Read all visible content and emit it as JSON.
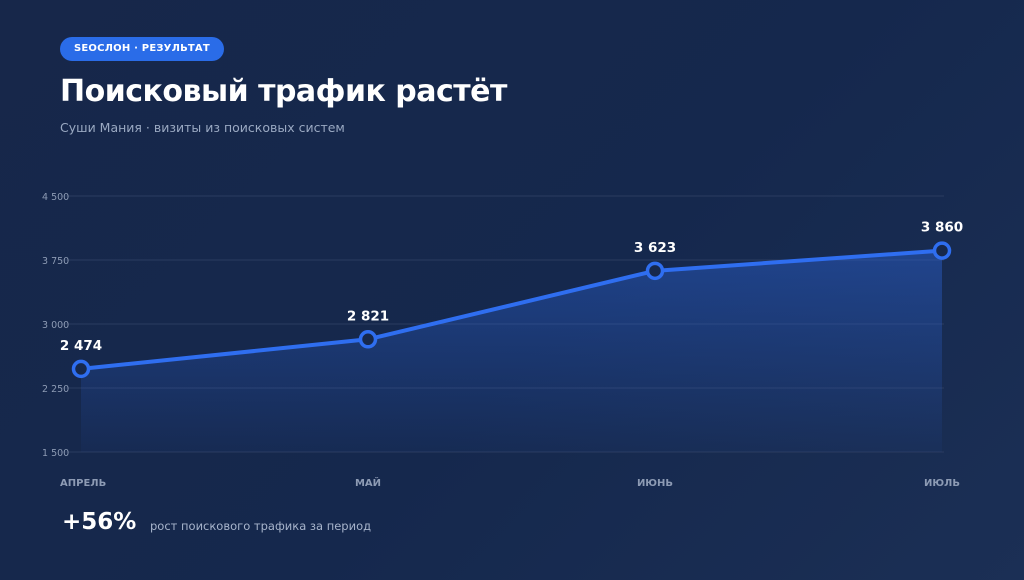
{
  "header": {
    "badge": "SEOCЛОН · РЕЗУЛЬТАТ",
    "title": "Поисковый трафик растёт",
    "subtitle": "Суши Мания · визиты из поисковых систем"
  },
  "summary": {
    "growth": "+56%",
    "caption": "рост поискового трафика за период"
  },
  "colors": {
    "accent": "#2a6ce8",
    "line": "#2f6ef0",
    "grid": "#2b3c60",
    "tick": "#8d9bb4",
    "label": "#ffffff"
  },
  "chart_data": {
    "type": "area",
    "categories": [
      "АПРЕЛЬ",
      "МАЙ",
      "ИЮНЬ",
      "ИЮЛЬ"
    ],
    "series": [
      {
        "values": [
          2474,
          2821,
          3623,
          3860
        ],
        "labels": [
          "2 474",
          "2 821",
          "3 623",
          "3 860"
        ]
      }
    ],
    "y_ticks": [
      1500,
      2250,
      3000,
      3750,
      4500
    ],
    "y_tick_labels": [
      "1 500",
      "2 250",
      "3 000",
      "3 750",
      "4 500"
    ],
    "ylim": [
      1500,
      4500
    ],
    "grid": true,
    "legend": "none"
  }
}
